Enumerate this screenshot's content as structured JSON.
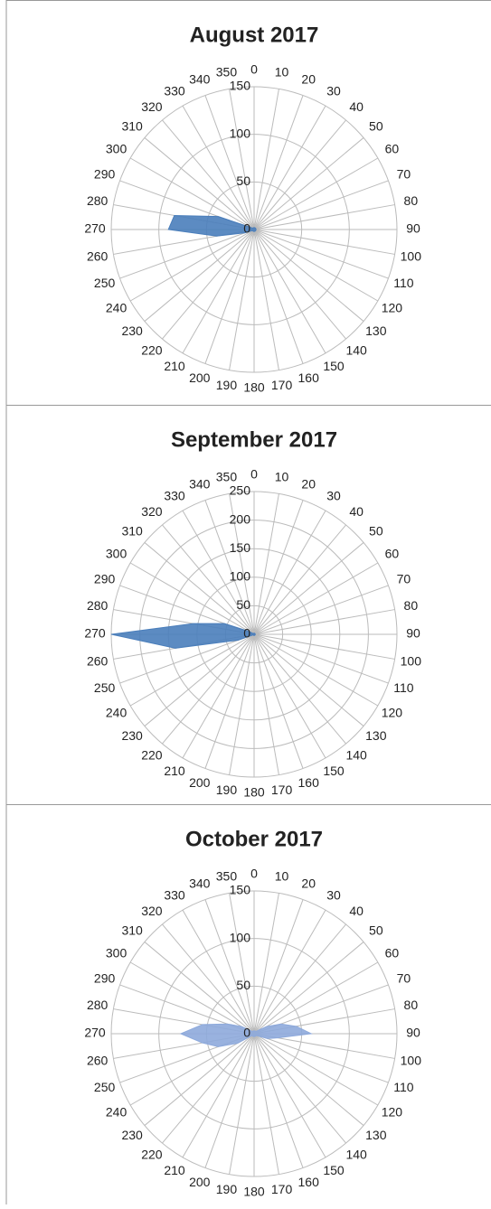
{
  "chart_data": [
    {
      "type": "radar",
      "title": "August 2017",
      "categories": [
        "0",
        "10",
        "20",
        "30",
        "40",
        "50",
        "60",
        "70",
        "80",
        "90",
        "100",
        "110",
        "120",
        "130",
        "140",
        "150",
        "160",
        "170",
        "180",
        "190",
        "200",
        "210",
        "220",
        "230",
        "240",
        "250",
        "260",
        "270",
        "280",
        "290",
        "300",
        "310",
        "320",
        "330",
        "340",
        "350"
      ],
      "values": [
        2,
        2,
        2,
        2,
        2,
        2,
        2,
        2,
        2,
        2,
        2,
        2,
        2,
        2,
        2,
        2,
        2,
        2,
        2,
        2,
        2,
        2,
        2,
        2,
        2,
        10,
        40,
        90,
        85,
        40,
        5,
        2,
        2,
        2,
        2,
        2
      ],
      "color": "#4a7ebb",
      "rlim": [
        0,
        150
      ],
      "rticks": [
        0,
        50,
        100,
        150
      ]
    },
    {
      "type": "radar",
      "title": "September 2017",
      "categories": [
        "0",
        "10",
        "20",
        "30",
        "40",
        "50",
        "60",
        "70",
        "80",
        "90",
        "100",
        "110",
        "120",
        "130",
        "140",
        "150",
        "160",
        "170",
        "180",
        "190",
        "200",
        "210",
        "220",
        "230",
        "240",
        "250",
        "260",
        "270",
        "280",
        "290",
        "300",
        "310",
        "320",
        "330",
        "340",
        "350"
      ],
      "values": [
        2,
        2,
        2,
        2,
        2,
        2,
        2,
        2,
        2,
        2,
        2,
        2,
        2,
        2,
        2,
        2,
        2,
        2,
        2,
        2,
        2,
        2,
        2,
        2,
        2,
        30,
        140,
        250,
        108,
        55,
        10,
        2,
        2,
        2,
        2,
        2
      ],
      "color": "#4a7ebb",
      "rlim": [
        0,
        250
      ],
      "rticks": [
        0,
        50,
        100,
        150,
        200,
        250
      ]
    },
    {
      "type": "radar",
      "title": "October 2017",
      "categories": [
        "0",
        "10",
        "20",
        "30",
        "40",
        "50",
        "60",
        "70",
        "80",
        "90",
        "100",
        "110",
        "120",
        "130",
        "140",
        "150",
        "160",
        "170",
        "180",
        "190",
        "200",
        "210",
        "220",
        "230",
        "240",
        "250",
        "260",
        "270",
        "280",
        "290",
        "300",
        "310",
        "320",
        "330",
        "340",
        "350"
      ],
      "values": [
        3,
        3,
        3,
        3,
        3,
        5,
        15,
        30,
        45,
        60,
        25,
        15,
        5,
        3,
        3,
        3,
        3,
        3,
        3,
        3,
        3,
        3,
        3,
        3,
        20,
        40,
        55,
        77,
        55,
        30,
        15,
        5,
        3,
        3,
        3,
        3
      ],
      "color": "#8eaadc",
      "rlim": [
        0,
        150
      ],
      "rticks": [
        0,
        50,
        100,
        150
      ]
    }
  ]
}
